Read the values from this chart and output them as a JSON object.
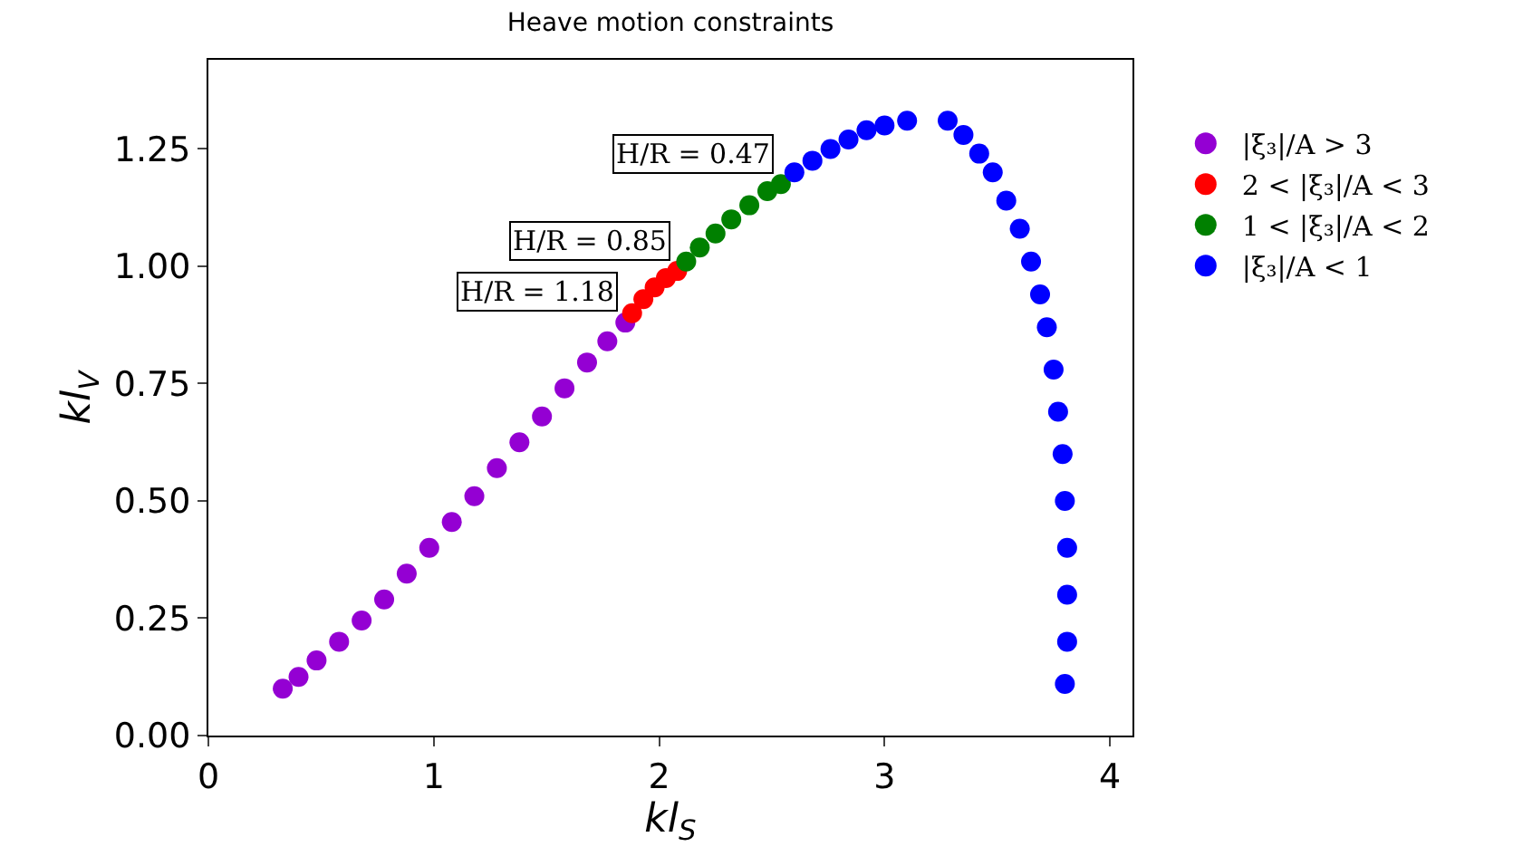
{
  "chart_data": {
    "type": "scatter",
    "title": "Heave motion constraints",
    "xlabel": "kl$_{S}$",
    "ylabel": "kl$_{V}$",
    "xlim": [
      0,
      4.1
    ],
    "xticks": [
      0,
      1,
      2,
      3,
      4
    ],
    "ylim": [
      0,
      1.44
    ],
    "yticks": [
      {
        "value": 0,
        "label": "0.00"
      },
      0.25,
      {
        "value": 0.5,
        "label": "0.50"
      },
      0.75,
      {
        "value": 1,
        "label": "1.00"
      },
      1.25
    ],
    "legend": "right",
    "marker": "circle",
    "series": [
      {
        "name": "|ξ₃|/A > 3",
        "color": "#9400d3",
        "x": [
          0.33,
          0.4,
          0.48,
          0.58,
          0.68,
          0.78,
          0.88,
          0.98,
          1.08,
          1.18,
          1.28,
          1.38,
          1.48,
          1.58,
          1.68,
          1.77,
          1.85
        ],
        "values": [
          0.1,
          0.125,
          0.16,
          0.2,
          0.245,
          0.29,
          0.345,
          0.4,
          0.455,
          0.51,
          0.57,
          0.625,
          0.68,
          0.74,
          0.795,
          0.84,
          0.88
        ]
      },
      {
        "name": "2 < |ξ₃|/A < 3",
        "color": "#ff0000",
        "x": [
          1.88,
          1.93,
          1.98,
          2.03,
          2.08
        ],
        "values": [
          0.9,
          0.93,
          0.955,
          0.975,
          0.99
        ]
      },
      {
        "name": "1 < |ξ₃|/A < 2",
        "color": "#008000",
        "x": [
          2.12,
          2.18,
          2.25,
          2.32,
          2.4,
          2.48,
          2.54
        ],
        "values": [
          1.01,
          1.04,
          1.07,
          1.1,
          1.13,
          1.16,
          1.175
        ]
      },
      {
        "name": "|ξ₃|/A < 1",
        "color": "#0000ff",
        "x": [
          2.6,
          2.68,
          2.76,
          2.84,
          2.92,
          3.0,
          3.1,
          3.28,
          3.35,
          3.42,
          3.48,
          3.54,
          3.6,
          3.65,
          3.69,
          3.72,
          3.75,
          3.77,
          3.79,
          3.8,
          3.81,
          3.81,
          3.81,
          3.8
        ],
        "values": [
          1.2,
          1.225,
          1.25,
          1.27,
          1.29,
          1.3,
          1.31,
          1.31,
          1.28,
          1.24,
          1.2,
          1.14,
          1.08,
          1.01,
          0.94,
          0.87,
          0.78,
          0.69,
          0.6,
          0.5,
          0.4,
          0.3,
          0.2,
          0.11
        ]
      }
    ],
    "annotations": [
      {
        "text": "H/R = 0.47",
        "x": 2.54,
        "y": 1.175
      },
      {
        "text": "H/R = 0.85",
        "x": 2.08,
        "y": 0.99
      },
      {
        "text": "H/R = 1.18",
        "x": 1.85,
        "y": 0.88
      }
    ]
  }
}
